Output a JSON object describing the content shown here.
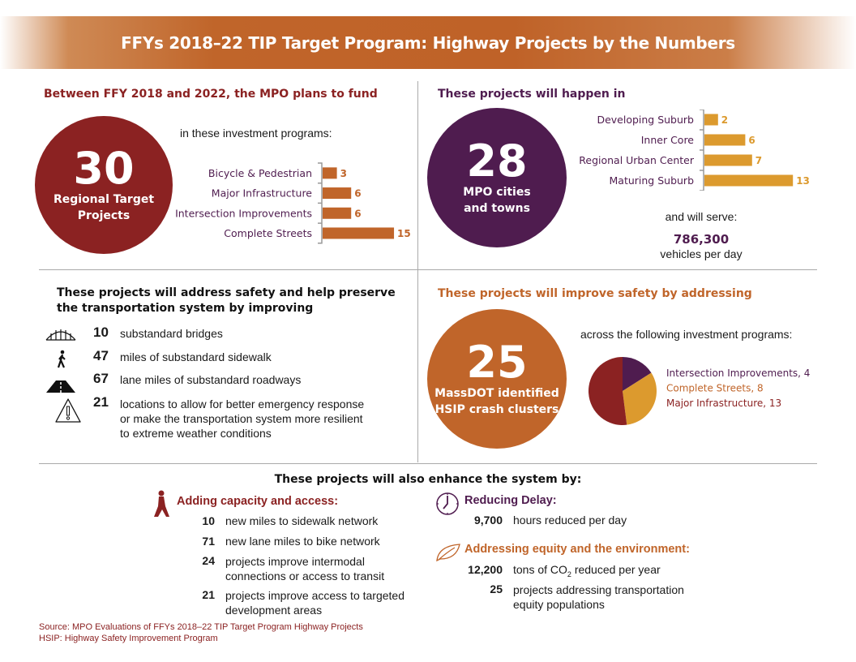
{
  "title": "FFYs 2018–22 TIP Target Program: Highway Projects by the Numbers",
  "colors": {
    "red": "#8b2222",
    "purple": "#4f1c4f",
    "orange": "#c0652a",
    "gold": "#dc9a2e"
  },
  "fund": {
    "heading": "Between FFY 2018 and 2022, the MPO plans to fund",
    "big": "30",
    "sub1": "Regional Target",
    "sub2": "Projects",
    "intro": "in these investment programs:"
  },
  "places": {
    "heading": "These projects will happen in",
    "big": "28",
    "sub1": "MPO cities",
    "sub2": "and towns",
    "serve": "and will serve:",
    "vehicles": "786,300",
    "vehicles_label": "vehicles per day"
  },
  "safety": {
    "heading1": "These projects will address safety and help preserve",
    "heading2": "the transportation system by improving",
    "items": [
      {
        "icon": "bridge-icon",
        "num": "10",
        "text": "substandard bridges"
      },
      {
        "icon": "pedestrian-icon",
        "num": "47",
        "text": "miles of substandard sidewalk"
      },
      {
        "icon": "road-icon",
        "num": "67",
        "text": "lane miles of substandard roadways"
      },
      {
        "icon": "warning-icon",
        "num": "21",
        "text1": "locations to allow for better emergency response",
        "text2": "or make the transportation system more resilient",
        "text3": "to extreme weather conditions"
      }
    ]
  },
  "hsip": {
    "heading": "These projects will improve safety by addressing",
    "big": "25",
    "sub1": "MassDOT identified",
    "sub2": "HSIP crash clusters",
    "intro": "across the following investment programs:"
  },
  "enhance": {
    "heading": "These projects will also enhance the system by:",
    "capacity": {
      "icon": "pedestrian-icon",
      "title": "Adding capacity and access:",
      "items": [
        {
          "num": "10",
          "text": "new miles to sidewalk network"
        },
        {
          "num": "71",
          "text": "new lane miles to bike network"
        },
        {
          "num": "24",
          "text1": "projects improve intermodal",
          "text2": "connections or access to transit"
        },
        {
          "num": "21",
          "text1": "projects improve access to targeted",
          "text2": "development areas"
        }
      ]
    },
    "delay": {
      "icon": "clock-icon",
      "title": "Reducing Delay:",
      "num": "9,700",
      "text": "hours reduced per day"
    },
    "equity": {
      "icon": "leaf-icon",
      "title": "Addressing equity and the environment:",
      "num1": "12,200",
      "text1a": "tons of CO",
      "text1sub": "2",
      "text1b": " reduced per year",
      "num2": "25",
      "text2a": "projects addressing transportation",
      "text2b": "equity populations"
    }
  },
  "source": "Source: MPO Evaluations of FFYs 2018–22 TIP Target Program Highway Projects",
  "note": "HSIP: Highway Safety Improvement Program",
  "chart_data": [
    {
      "type": "bar",
      "orientation": "horizontal",
      "categories": [
        "Bicycle & Pedestrian",
        "Major Infrastructure",
        "Intersection Improvements",
        "Complete Streets"
      ],
      "values": [
        3,
        6,
        6,
        15
      ],
      "color": "#c0652a"
    },
    {
      "type": "bar",
      "orientation": "horizontal",
      "categories": [
        "Developing Suburb",
        "Inner Core",
        "Regional Urban Center",
        "Maturing Suburb"
      ],
      "values": [
        2,
        6,
        7,
        13
      ],
      "color": "#dc9a2e"
    },
    {
      "type": "pie",
      "categories": [
        "Intersection Improvements",
        "Complete Streets",
        "Major Infrastructure"
      ],
      "values": [
        4,
        8,
        13
      ],
      "labels": [
        "Intersection Improvements, 4",
        "Complete Streets, 8",
        "Major Infrastructure, 13"
      ],
      "colors": [
        "#4f1c4f",
        "#dc9a2e",
        "#8b2222"
      ],
      "legend": "right"
    }
  ]
}
